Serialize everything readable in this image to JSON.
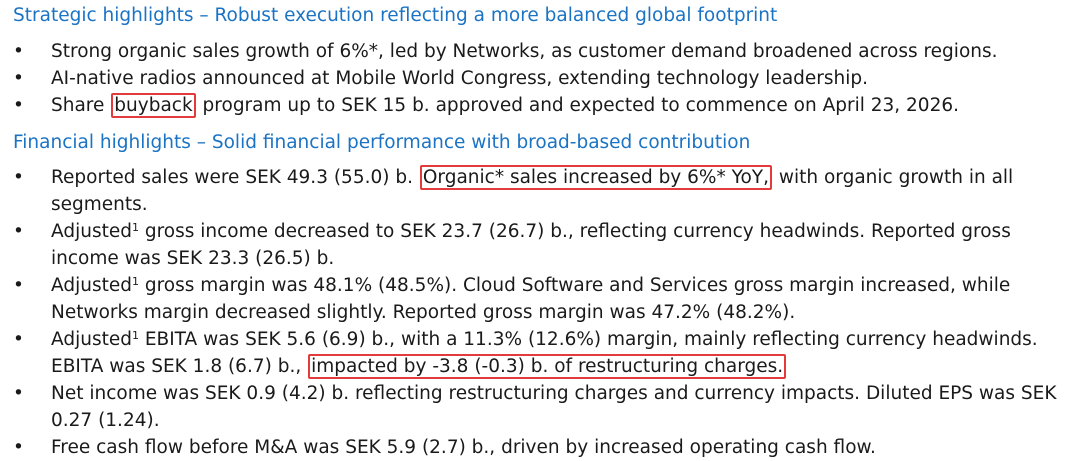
{
  "strategic": {
    "heading": "Strategic highlights – Robust execution reflecting a more balanced global footprint",
    "bullets": [
      {
        "text": "Strong organic sales growth of 6%*, led by Networks, as customer demand broadened across regions."
      },
      {
        "text": "AI-native radios announced at Mobile World Congress, extending technology leadership."
      },
      {
        "before": "Share ",
        "highlight": "buyback",
        "after": " program up to SEK 15 b. approved and expected to commence on April 23, 2026."
      }
    ]
  },
  "financial": {
    "heading": "Financial highlights – Solid financial performance with broad-based contribution",
    "bullets": [
      {
        "before": "Reported sales were SEK 49.3 (55.0) b. ",
        "highlight": "Organic* sales increased by 6%* YoY,",
        "after": " with organic growth in all segments."
      },
      {
        "lead": "Adjusted",
        "sup": "1",
        "text": " gross income decreased to SEK 23.7 (26.7) b., reflecting currency headwinds. Reported gross income was SEK 23.3 (26.5) b."
      },
      {
        "lead": "Adjusted",
        "sup": "1",
        "text": " gross margin was 48.1% (48.5%). Cloud Software and Services gross margin increased, while Networks margin decreased slightly. Reported gross margin was 47.2% (48.2%)."
      },
      {
        "lead": "Adjusted",
        "sup": "1",
        "before": " EBITA was SEK 5.6 (6.9) b., with a 11.3% (12.6%) margin, mainly reflecting currency headwinds. EBITA was SEK 1.8 (6.7) b., ",
        "highlight": "impacted by -3.8 (-0.3) b. of restructuring charges."
      },
      {
        "text": "Net income was SEK 0.9 (4.2) b. reflecting restructuring charges and currency impacts. Diluted EPS was SEK 0.27 (1.24)."
      },
      {
        "text": "Free cash flow before M&A was SEK 5.9 (2.7) b., driven by increased operating cash flow."
      }
    ]
  },
  "bullet_symbol": "•",
  "colors": {
    "heading": "#1b73c4",
    "body_text": "#1a1a1a",
    "highlight_border": "#e23b3b"
  }
}
